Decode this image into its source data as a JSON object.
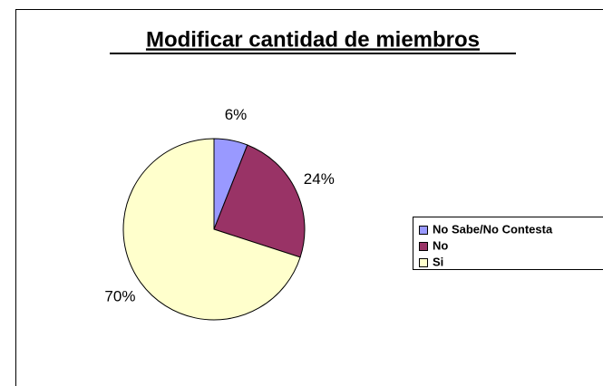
{
  "chart_data": {
    "type": "pie",
    "title": "Modificar cantidad de miembros",
    "categories": [
      "No Sabe/No Contesta",
      "No",
      "Si"
    ],
    "values": [
      6,
      24,
      70
    ],
    "value_labels": [
      "6%",
      "24%",
      "70%"
    ],
    "colors": [
      "#9999ff",
      "#993366",
      "#ffffcc"
    ],
    "legend": "right"
  }
}
